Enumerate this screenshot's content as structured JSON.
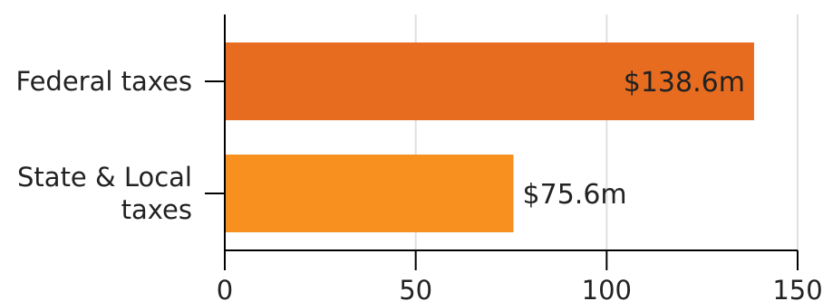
{
  "chart_data": {
    "type": "bar",
    "orientation": "horizontal",
    "categories": [
      {
        "lines": [
          "Federal taxes"
        ]
      },
      {
        "lines": [
          "State & Local",
          "taxes"
        ]
      }
    ],
    "values": [
      138.6,
      75.6
    ],
    "data_labels": [
      "$138.6m",
      "$75.6m"
    ],
    "colors": [
      "#e86c20",
      "#f7901e"
    ],
    "xlim": [
      0,
      150
    ],
    "xticks": [
      0,
      50,
      100,
      150
    ],
    "xtick_labels": [
      "0",
      "50",
      "100",
      "150"
    ],
    "grid": "vertical",
    "legend": "none",
    "title": "",
    "xlabel": "",
    "ylabel": ""
  }
}
